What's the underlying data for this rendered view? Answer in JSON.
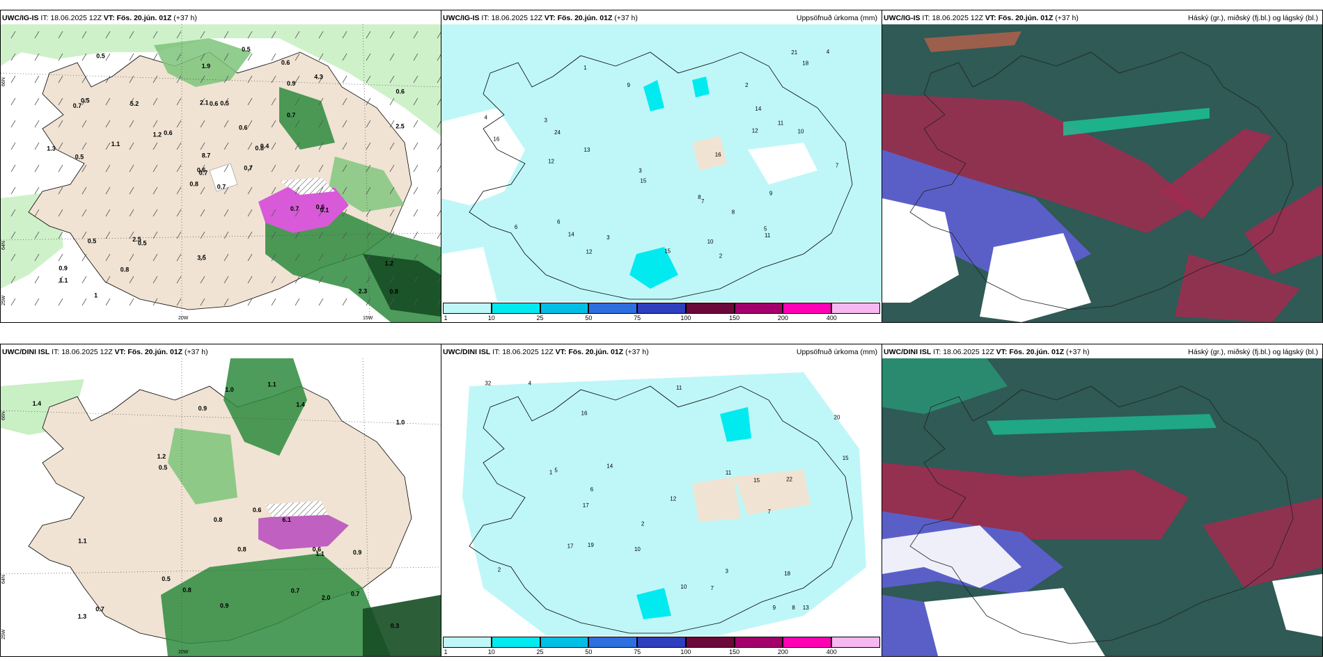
{
  "panels": [
    {
      "model": "UWC/IG-IS",
      "it_label": "IT:",
      "it": "18.06.2025 12Z",
      "vt_label": "VT:",
      "vt": "Fös. 20.jún. 01Z",
      "lead": "(+37 h)",
      "right_title": ""
    },
    {
      "model": "UWC/IG-IS",
      "it_label": "IT:",
      "it": "18.06.2025 12Z",
      "vt_label": "VT:",
      "vt": "Fös. 20.jún. 01Z",
      "lead": "(+37 h)",
      "right_title": "Uppsöfnuð úrkoma (mm)"
    },
    {
      "model": "UWC/IG-IS",
      "it_label": "IT:",
      "it": "18.06.2025 12Z",
      "vt_label": "VT:",
      "vt": "Fös. 20.jún. 01Z",
      "lead": "(+37 h)",
      "right_title": "Háský (gr.), miðský (fj.bl.) og lágský (bl.)"
    },
    {
      "model": "UWC/DINI ISL",
      "it_label": "IT:",
      "it": "18.06.2025 12Z",
      "vt_label": "VT:",
      "vt": "Fös. 20.jún. 01Z",
      "lead": "(+37 h)",
      "right_title": ""
    },
    {
      "model": "UWC/DINI ISL",
      "it_label": "IT:",
      "it": "18.06.2025 12Z",
      "vt_label": "VT:",
      "vt": "Fös. 20.jún. 01Z",
      "lead": "(+37 h)",
      "right_title": "Uppsöfnuð úrkoma (mm)"
    },
    {
      "model": "UWC/DINI ISL",
      "it_label": "IT:",
      "it": "18.06.2025 12Z",
      "vt_label": "VT:",
      "vt": "Fös. 20.jún. 01Z",
      "lead": "(+37 h)",
      "right_title": "Háský (gr.), miðský (fj.bl.) og lágský (bl.)"
    }
  ],
  "grid_labels": {
    "lat_66": "66N",
    "lat_64": "64N",
    "lon_25": "25W",
    "lon_20": "20W",
    "lon_15": "15W"
  },
  "precip_colorbar": {
    "ticks": [
      "1",
      "10",
      "25",
      "50",
      "75",
      "100",
      "150",
      "200",
      "400"
    ],
    "colors": [
      "#bff7f8",
      "#00eaf0",
      "#00bfe6",
      "#2e6fe0",
      "#2d3fbf",
      "#6b0a3a",
      "#a3006b",
      "#ff00b4",
      "#f5b8f0"
    ]
  },
  "panel1_values": [
    "0.7",
    "0.7",
    "0.7",
    "0.9",
    "0.8",
    "0.5",
    "0.6",
    "0.5",
    "0.9",
    "0.7",
    "0.5",
    "0.8",
    "0.5",
    "0.6",
    "0.8",
    "0.7",
    "1",
    "2.1",
    "0.6",
    "0.5",
    "0.6",
    "1.1",
    "0.8",
    "0.6",
    "0.4",
    "0.1",
    "0.5",
    "1.9",
    "1.3",
    "0.7",
    "2.5",
    "0.6",
    "3.5",
    "8.7",
    "5.2",
    "4.3",
    "2.5",
    "2.3",
    "1.2",
    "0.6",
    "0.5",
    "1.2",
    "1.1"
  ],
  "panel2_values": [
    "2",
    "1",
    "6",
    "3",
    "11",
    "10",
    "7",
    "13",
    "15",
    "14",
    "6",
    "4",
    "3",
    "8",
    "12",
    "21",
    "16",
    "18",
    "9",
    "10",
    "5",
    "7",
    "12",
    "11",
    "16",
    "14",
    "12",
    "24",
    "15",
    "9",
    "8",
    "4",
    "2",
    "3"
  ],
  "panel4_values": [
    "1.3",
    "0.9",
    "0.6",
    "0.8",
    "0.9",
    "1.1",
    "0.7",
    "1.4",
    "2.0",
    "0.5",
    "0.3",
    "0.5",
    "0.8",
    "1.0",
    "0.7",
    "1.2",
    "0.6",
    "1.1",
    "0.8",
    "1.0",
    "1.4",
    "0.7",
    "0.9",
    "6.1",
    "1.1"
  ],
  "panel5_values": [
    "2",
    "1",
    "4",
    "7",
    "13",
    "16",
    "10",
    "17",
    "19",
    "15",
    "22",
    "11",
    "32",
    "9",
    "6",
    "3",
    "12",
    "15",
    "20",
    "14",
    "8",
    "5",
    "7",
    "17",
    "18",
    "11",
    "10",
    "2"
  ]
}
